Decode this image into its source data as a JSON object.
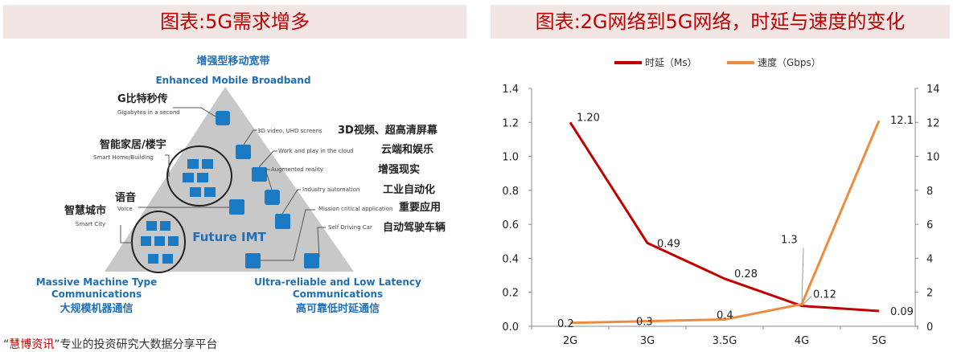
{
  "left_panel": {
    "title": "图表:5G需求增多",
    "top_cn": "增强型移动宽带",
    "top_en": "Enhanced Mobile Broadband",
    "left_cn": "大规模机器通信",
    "left_en1": "Massive Machine Type",
    "left_en2": "Communications",
    "right_en1": "Ultra-reliable and Low Latency",
    "right_en2": "Communications",
    "right_cn": "高可靠低时延通信",
    "center": "Future IMT",
    "labels": {
      "gbps_cn": "G比特秒传",
      "gbps_en": "Gigabytes in a second",
      "home_cn": "智能家居/楼宇",
      "home_en": "Smart Home/Building",
      "voice_cn": "语音",
      "voice_en": "Voice",
      "city_cn": "智慧城市",
      "city_en": "Smart City",
      "video_en": "3D video, UHD screens",
      "video_cn": "3D视频、超高清屏幕",
      "cloud_en": "Work and play in the cloud",
      "cloud_cn": "云端和娱乐",
      "ar_en": "Augmented reality",
      "ar_cn": "增强现实",
      "industry_en": "Industry automation",
      "industry_cn": "工业自动化",
      "mission_en": "Mission critical  application",
      "mission_cn": "重要应用",
      "car_en": "Self Driving Car",
      "car_cn": "自动驾驶车辆"
    },
    "footer_prefix": "“",
    "footer_brand": "慧博资讯",
    "footer_rest": "”专业的投资研究大数据分享平台"
  },
  "right_panel": {
    "title": "图表:2G网络到5G网络，时延与速度的变化"
  },
  "chart_data": {
    "type": "line",
    "categories": [
      "2G",
      "3G",
      "3.5G",
      "4G",
      "5G"
    ],
    "series": [
      {
        "name": "时延（Ms）",
        "axis": "left",
        "color": "#c00000",
        "values": [
          1.2,
          0.49,
          0.28,
          0.12,
          0.09
        ],
        "labels": [
          "1.20",
          "0.49",
          "0.28",
          "0.12",
          "0.09"
        ]
      },
      {
        "name": "速度（Gbps）",
        "axis": "right",
        "color": "#ed8c40",
        "values": [
          0.2,
          0.3,
          0.4,
          1.3,
          12.1
        ],
        "labels": [
          "0.2",
          "0.3",
          "0.4",
          "1.3",
          "12.1"
        ]
      }
    ],
    "ylim_left": [
      0,
      1.4
    ],
    "yticks_left": [
      "0.0",
      "0.2",
      "0.4",
      "0.6",
      "0.8",
      "1.0",
      "1.2",
      "1.4"
    ],
    "ylim_right": [
      0,
      14
    ],
    "yticks_right": [
      "0",
      "2",
      "4",
      "6",
      "8",
      "10",
      "12",
      "14"
    ],
    "grid": false,
    "legend": "top"
  }
}
